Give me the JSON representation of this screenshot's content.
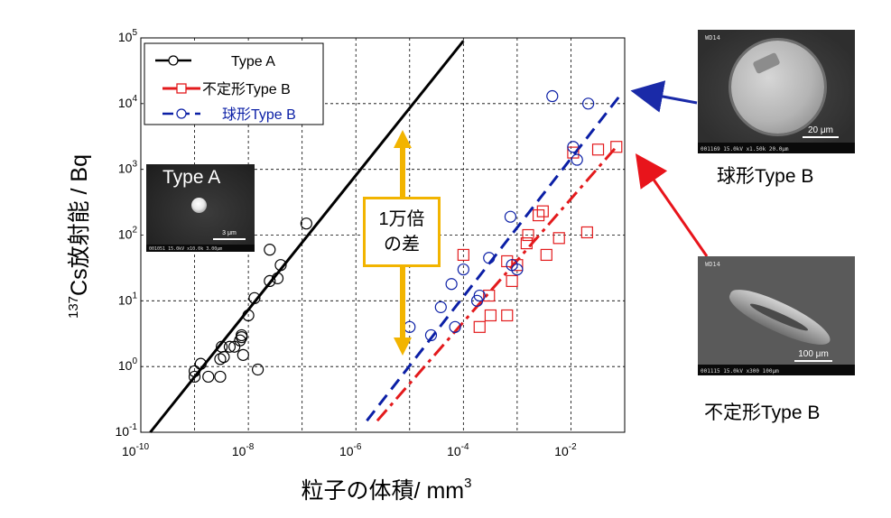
{
  "chart_data": {
    "type": "scatter",
    "xscale": "log",
    "yscale": "log",
    "xlim": [
      1e-10,
      0.1
    ],
    "ylim": [
      0.1,
      100000
    ],
    "xlabel": "粒子の体積/ mm",
    "xlabel_sup": "3",
    "ylabel_sup": "137",
    "ylabel": "Cs放射能 / Bq",
    "grid": true,
    "x_ticks": [
      {
        "base": "10",
        "exp": "-10",
        "value": 1e-10
      },
      {
        "base": "10",
        "exp": "-8",
        "value": 1e-08
      },
      {
        "base": "10",
        "exp": "-6",
        "value": 1e-06
      },
      {
        "base": "10",
        "exp": "-4",
        "value": 0.0001
      },
      {
        "base": "10",
        "exp": "-2",
        "value": 0.01
      }
    ],
    "y_ticks": [
      {
        "base": "10",
        "exp": "-1",
        "value": 0.1
      },
      {
        "base": "10",
        "exp": "0",
        "value": 1
      },
      {
        "base": "10",
        "exp": "1",
        "value": 10
      },
      {
        "base": "10",
        "exp": "2",
        "value": 100
      },
      {
        "base": "10",
        "exp": "3",
        "value": 1000
      },
      {
        "base": "10",
        "exp": "4",
        "value": 10000
      },
      {
        "base": "10",
        "exp": "5",
        "value": 100000
      }
    ],
    "legend_position": "top-left",
    "series": [
      {
        "name": "Type A",
        "color": "#000000",
        "marker": "circle",
        "line": "solid",
        "fit": [
          [
            1.5e-10,
            0.1
          ],
          [
            0.0001,
            90000
          ]
        ],
        "points": [
          [
            1e-09,
            0.7
          ],
          [
            1e-09,
            0.85
          ],
          [
            1.3e-09,
            1.1
          ],
          [
            1.8e-09,
            0.7
          ],
          [
            3e-09,
            0.7
          ],
          [
            3e-09,
            1.3
          ],
          [
            3.2e-09,
            2
          ],
          [
            3.5e-09,
            1.4
          ],
          [
            4.5e-09,
            2
          ],
          [
            5.5e-09,
            2
          ],
          [
            7e-09,
            2.5
          ],
          [
            7.5e-09,
            3
          ],
          [
            7.5e-09,
            2.8
          ],
          [
            8e-09,
            1.5
          ],
          [
            1e-08,
            6
          ],
          [
            1.3e-08,
            11
          ],
          [
            1.5e-08,
            0.9
          ],
          [
            2.5e-08,
            20
          ],
          [
            2.5e-08,
            60
          ],
          [
            3.5e-08,
            22
          ],
          [
            4e-08,
            35
          ],
          [
            1.2e-07,
            150
          ]
        ]
      },
      {
        "name": "不定形Type B",
        "color": "#e31a1c",
        "marker": "square",
        "line": "dashdot",
        "fit": [
          [
            2.5e-06,
            0.15
          ],
          [
            0.07,
            2200
          ]
        ],
        "points": [
          [
            0.0001,
            50
          ],
          [
            0.0002,
            4
          ],
          [
            0.0003,
            12
          ],
          [
            0.00032,
            6
          ],
          [
            0.00065,
            6
          ],
          [
            0.00065,
            40
          ],
          [
            0.0008,
            20
          ],
          [
            0.001,
            35
          ],
          [
            0.0015,
            75
          ],
          [
            0.0016,
            100
          ],
          [
            0.0025,
            200
          ],
          [
            0.003,
            230
          ],
          [
            0.0035,
            50
          ],
          [
            0.006,
            90
          ],
          [
            0.011,
            1800
          ],
          [
            0.02,
            110
          ],
          [
            0.032,
            2000
          ],
          [
            0.07,
            2200
          ]
        ]
      },
      {
        "name": "球形Type B",
        "color": "#0b1fa6",
        "marker": "circle",
        "line": "dashed",
        "fit": [
          [
            1.6e-06,
            0.15
          ],
          [
            0.08,
            13000
          ]
        ],
        "points": [
          [
            1e-05,
            4
          ],
          [
            2.5e-05,
            3
          ],
          [
            3.8e-05,
            8
          ],
          [
            6e-05,
            18
          ],
          [
            7e-05,
            4
          ],
          [
            0.0001,
            30
          ],
          [
            0.00018,
            10
          ],
          [
            0.0002,
            12
          ],
          [
            0.0003,
            45
          ],
          [
            0.00075,
            190
          ],
          [
            0.0008,
            35
          ],
          [
            0.001,
            30
          ],
          [
            0.0045,
            13000
          ],
          [
            0.011,
            2200
          ],
          [
            0.013,
            1400
          ],
          [
            0.021,
            10000
          ]
        ]
      }
    ]
  },
  "callout": {
    "line1": "1万倍",
    "line2": "の差",
    "color": "#f2b400"
  },
  "inset_type_a": {
    "label": "Type A",
    "scale_label": "3 μm",
    "info": "001051  15.0kV  x10.0k  3.00μm"
  },
  "sem_spherical": {
    "tag": "WD14",
    "scale_label": "20 μm",
    "info": "001169  15.0kV  x1.50k  20.0μm",
    "caption": "球形Type B"
  },
  "sem_irregular": {
    "tag": "WD14",
    "scale_label": "100 μm",
    "info": "001115  15.0kV  x300  100μm",
    "caption": "不定形Type B"
  }
}
